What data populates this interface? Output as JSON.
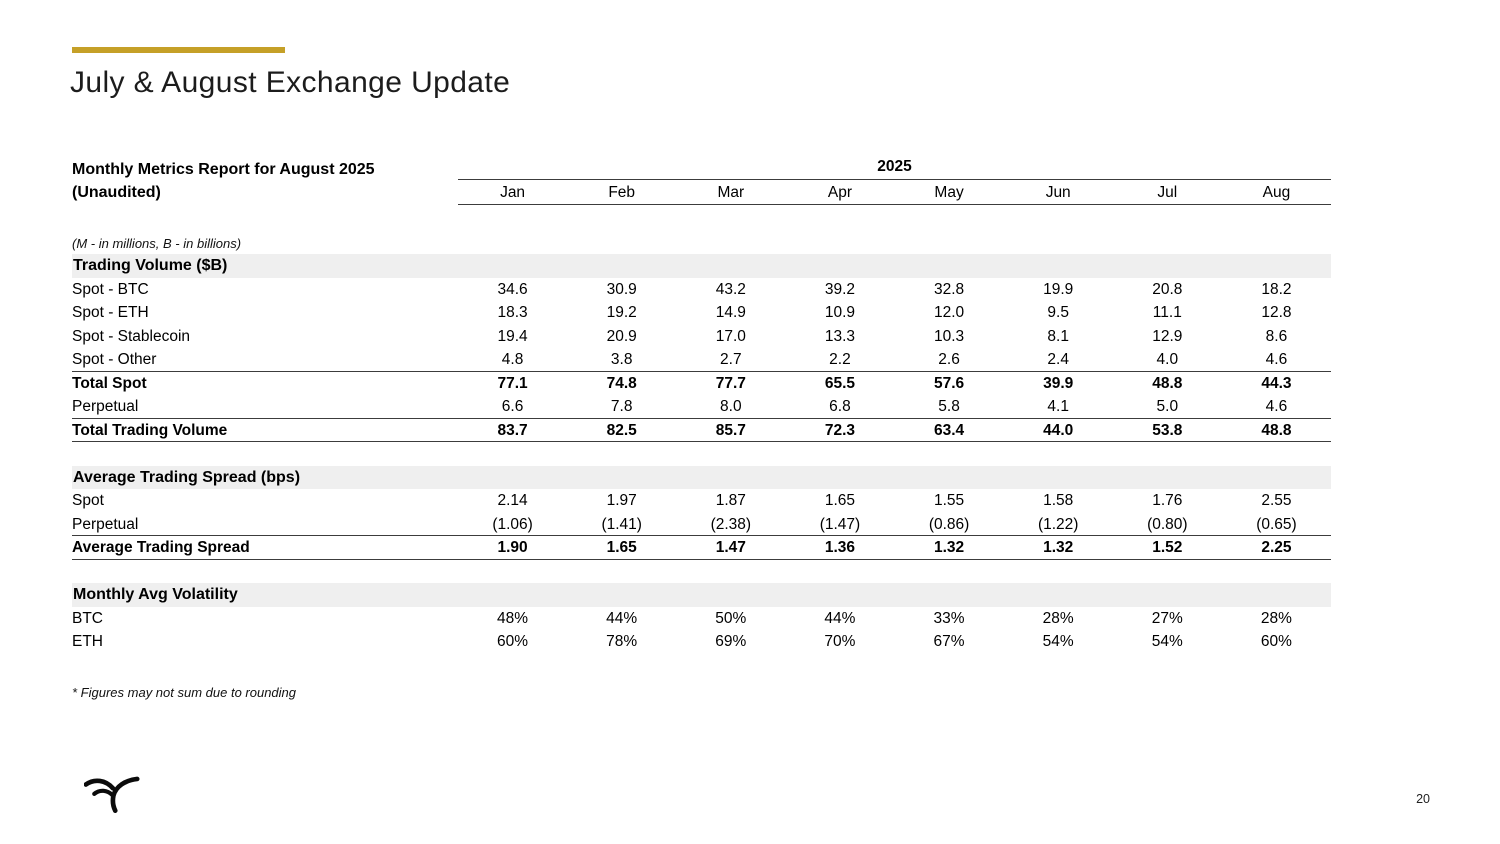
{
  "slide": {
    "title": "July & August Exchange Update",
    "footnote": "* Figures may not sum due to rounding",
    "page_number": "20",
    "accent_color": "#C5A028",
    "logo_icon": "falcon-wings-logo"
  },
  "table": {
    "title_line1": "Monthly Metrics Report for August 2025",
    "title_line2": "(Unaudited)",
    "year_header": "2025",
    "months": [
      "Jan",
      "Feb",
      "Mar",
      "Apr",
      "May",
      "Jun",
      "Jul",
      "Aug"
    ],
    "units_note": "(M - in millions, B - in billions)",
    "section_band_color": "#EFEFEF",
    "sections": [
      {
        "header": "Trading Volume ($B)",
        "rows": [
          {
            "label": "Spot - BTC",
            "bold": false,
            "rule_below": false,
            "values": [
              "34.6",
              "30.9",
              "43.2",
              "39.2",
              "32.8",
              "19.9",
              "20.8",
              "18.2"
            ]
          },
          {
            "label": "Spot - ETH",
            "bold": false,
            "rule_below": false,
            "values": [
              "18.3",
              "19.2",
              "14.9",
              "10.9",
              "12.0",
              "9.5",
              "11.1",
              "12.8"
            ]
          },
          {
            "label": "Spot - Stablecoin",
            "bold": false,
            "rule_below": false,
            "values": [
              "19.4",
              "20.9",
              "17.0",
              "13.3",
              "10.3",
              "8.1",
              "12.9",
              "8.6"
            ]
          },
          {
            "label": "Spot - Other",
            "bold": false,
            "rule_below": true,
            "values": [
              "4.8",
              "3.8",
              "2.7",
              "2.2",
              "2.6",
              "2.4",
              "4.0",
              "4.6"
            ]
          },
          {
            "label": "Total Spot",
            "bold": true,
            "rule_below": false,
            "values": [
              "77.1",
              "74.8",
              "77.7",
              "65.5",
              "57.6",
              "39.9",
              "48.8",
              "44.3"
            ]
          },
          {
            "label": "Perpetual",
            "bold": false,
            "rule_below": true,
            "values": [
              "6.6",
              "7.8",
              "8.0",
              "6.8",
              "5.8",
              "4.1",
              "5.0",
              "4.6"
            ]
          },
          {
            "label": "Total Trading Volume",
            "bold": true,
            "rule_below": true,
            "values": [
              "83.7",
              "82.5",
              "85.7",
              "72.3",
              "63.4",
              "44.0",
              "53.8",
              "48.8"
            ]
          }
        ]
      },
      {
        "header": "Average Trading Spread (bps)",
        "rows": [
          {
            "label": "Spot",
            "bold": false,
            "rule_below": false,
            "values": [
              "2.14",
              "1.97",
              "1.87",
              "1.65",
              "1.55",
              "1.58",
              "1.76",
              "2.55"
            ]
          },
          {
            "label": "Perpetual",
            "bold": false,
            "rule_below": true,
            "values": [
              "(1.06)",
              "(1.41)",
              "(2.38)",
              "(1.47)",
              "(0.86)",
              "(1.22)",
              "(0.80)",
              "(0.65)"
            ]
          },
          {
            "label": "Average Trading Spread",
            "bold": true,
            "rule_below": true,
            "values": [
              "1.90",
              "1.65",
              "1.47",
              "1.36",
              "1.32",
              "1.32",
              "1.52",
              "2.25"
            ]
          }
        ]
      },
      {
        "header": "Monthly Avg Volatility",
        "rows": [
          {
            "label": "BTC",
            "bold": false,
            "rule_below": false,
            "values": [
              "48%",
              "44%",
              "50%",
              "44%",
              "33%",
              "28%",
              "27%",
              "28%"
            ]
          },
          {
            "label": "ETH",
            "bold": false,
            "rule_below": false,
            "values": [
              "60%",
              "78%",
              "69%",
              "70%",
              "67%",
              "54%",
              "54%",
              "60%"
            ]
          }
        ]
      }
    ]
  }
}
